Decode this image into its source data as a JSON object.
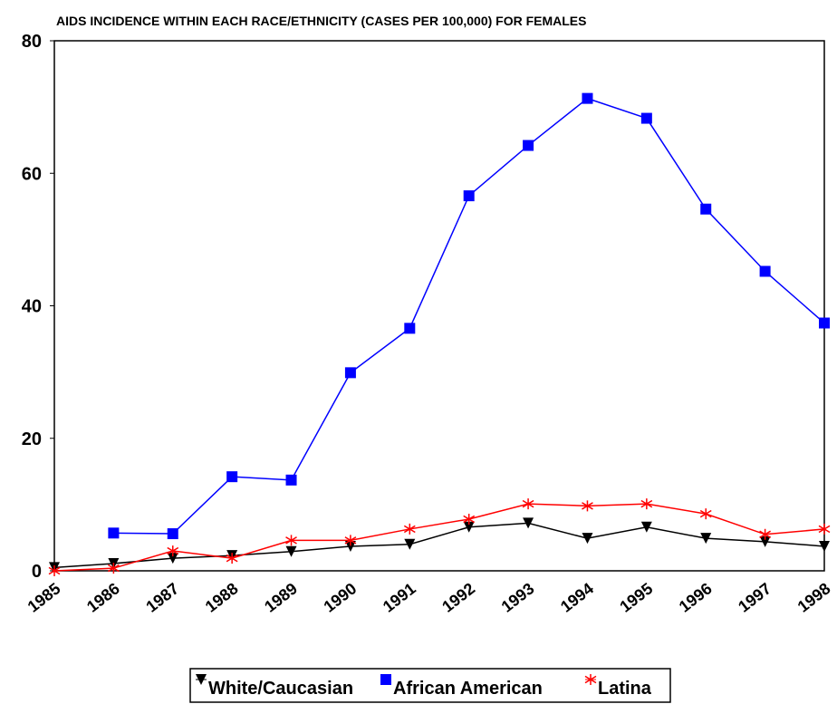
{
  "chart_data": {
    "type": "line",
    "title": "AIDS INCIDENCE WITHIN EACH RACE/ETHNICITY (CASES PER 100,000) FOR FEMALES",
    "categories": [
      "1985",
      "1986",
      "1987",
      "1988",
      "1989",
      "1990",
      "1991",
      "1992",
      "1993",
      "1994",
      "1995",
      "1996",
      "1997",
      "1998"
    ],
    "series": [
      {
        "name": "White/Caucasian",
        "color": "#000000",
        "marker": "triangle-down",
        "values": [
          0.5,
          1.1,
          1.9,
          2.3,
          2.9,
          3.7,
          4.0,
          6.6,
          7.2,
          4.9,
          6.6,
          4.9,
          4.4,
          3.7
        ]
      },
      {
        "name": "African American",
        "color": "#0000ff",
        "marker": "square",
        "values": [
          null,
          5.7,
          5.6,
          14.2,
          13.7,
          29.9,
          36.6,
          56.6,
          64.2,
          71.3,
          68.3,
          54.6,
          45.2,
          37.4
        ]
      },
      {
        "name": "Latina",
        "color": "#ff0000",
        "marker": "asterisk",
        "values": [
          0,
          0.4,
          3.0,
          1.9,
          4.6,
          4.6,
          6.3,
          7.8,
          10.1,
          9.8,
          10.1,
          8.6,
          5.5,
          6.3
        ]
      }
    ],
    "ylim": [
      0,
      80
    ],
    "yticks": [
      0,
      20,
      40,
      60,
      80
    ],
    "grid": false,
    "legend": "bottom"
  }
}
